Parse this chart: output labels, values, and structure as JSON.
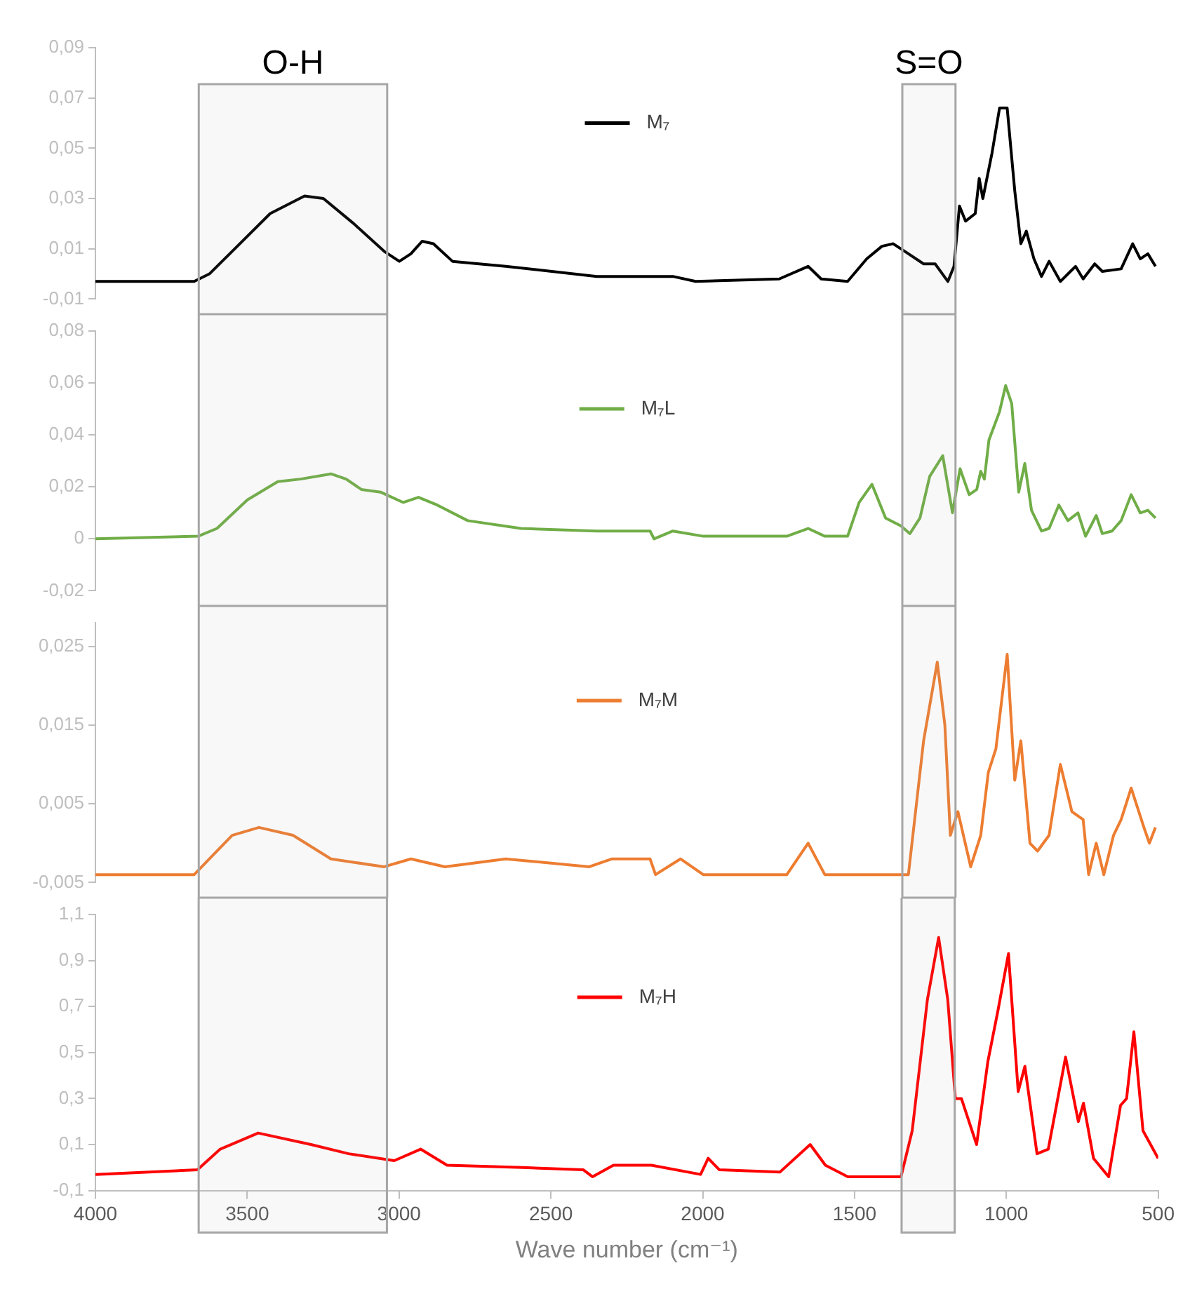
{
  "chart_data": [
    {
      "type": "line",
      "legend": "top",
      "tick_labels": "y",
      "xlim": [
        4000,
        500
      ],
      "ylim": [
        -0.01,
        0.09
      ],
      "yticks": [
        {
          "value": -0.01,
          "label": "-0,01"
        },
        {
          "value": 0.01,
          "label": "0,01"
        },
        {
          "value": 0.03,
          "label": "0,03"
        },
        {
          "value": 0.05,
          "label": "0,05"
        },
        {
          "value": 0.07,
          "label": "0,07"
        },
        {
          "value": 0.09,
          "label": "0,09"
        }
      ],
      "bands": [
        {
          "axis": "x",
          "from": 3660,
          "to": 3040,
          "label": "O-H",
          "color": "#a6a6a6"
        },
        {
          "axis": "x",
          "from": 1345,
          "to": 1170,
          "label": "S=O",
          "color": "#a6a6a6"
        }
      ],
      "series": [
        {
          "name": "M₇",
          "color": "#000000",
          "x": [
            4000,
            3675,
            3625,
            3525,
            3425,
            3312,
            3250,
            3150,
            3050,
            3000,
            2962,
            2925,
            2888,
            2825,
            2650,
            2350,
            2100,
            2025,
            1750,
            1655,
            1612,
            1525,
            1462,
            1412,
            1375,
            1337,
            1275,
            1237,
            1195,
            1175,
            1157,
            1137,
            1105,
            1092,
            1080,
            1050,
            1025,
            1000,
            975,
            955,
            937,
            912,
            887,
            862,
            825,
            775,
            750,
            712,
            687,
            625,
            587,
            562,
            537,
            512
          ],
          "values": [
            -0.003,
            -0.003,
            0.0,
            0.012,
            0.024,
            0.031,
            0.03,
            0.02,
            0.009,
            0.005,
            0.008,
            0.013,
            0.012,
            0.005,
            0.003,
            -0.001,
            -0.001,
            -0.003,
            -0.002,
            0.003,
            -0.002,
            -0.003,
            0.006,
            0.011,
            0.012,
            0.009,
            0.004,
            0.004,
            -0.003,
            0.003,
            0.027,
            0.021,
            0.024,
            0.038,
            0.03,
            0.048,
            0.066,
            0.066,
            0.033,
            0.012,
            0.017,
            0.006,
            -0.001,
            0.005,
            -0.003,
            0.003,
            -0.002,
            0.004,
            0.001,
            0.002,
            0.012,
            0.006,
            0.008,
            0.003
          ]
        }
      ]
    },
    {
      "type": "line",
      "legend": "top",
      "tick_labels": "y",
      "xlim": [
        4000,
        500
      ],
      "ylim": [
        -0.02,
        0.08
      ],
      "yticks": [
        {
          "value": -0.02,
          "label": "-0,02"
        },
        0,
        {
          "value": 0.02,
          "label": "0,02"
        },
        {
          "value": 0.04,
          "label": "0,04"
        },
        {
          "value": 0.06,
          "label": "0,06"
        },
        {
          "value": 0.08,
          "label": "0,08"
        }
      ],
      "bands": [
        {
          "axis": "x",
          "from": 3660,
          "to": 3040,
          "color": "#a6a6a6"
        },
        {
          "axis": "x",
          "from": 1345,
          "to": 1170,
          "color": "#a6a6a6"
        }
      ],
      "series": [
        {
          "name": "M₇L",
          "color": "#70ad47",
          "x": [
            4000,
            3662,
            3600,
            3500,
            3400,
            3325,
            3225,
            3175,
            3125,
            3062,
            2987,
            2937,
            2875,
            2775,
            2600,
            2350,
            2175,
            2162,
            2100,
            2000,
            1725,
            1655,
            1600,
            1525,
            1487,
            1445,
            1400,
            1350,
            1320,
            1287,
            1255,
            1212,
            1180,
            1155,
            1125,
            1100,
            1087,
            1075,
            1060,
            1025,
            1005,
            985,
            962,
            942,
            920,
            887,
            862,
            830,
            800,
            767,
            742,
            707,
            687,
            655,
            625,
            592,
            562,
            537,
            512
          ],
          "values": [
            0,
            0.001,
            0.004,
            0.015,
            0.022,
            0.023,
            0.025,
            0.023,
            0.019,
            0.018,
            0.014,
            0.016,
            0.013,
            0.007,
            0.004,
            0.003,
            0.003,
            0,
            0.003,
            0.001,
            0.001,
            0.004,
            0.001,
            0.001,
            0.014,
            0.021,
            0.008,
            0.005,
            0.002,
            0.008,
            0.024,
            0.032,
            0.01,
            0.027,
            0.017,
            0.019,
            0.026,
            0.023,
            0.038,
            0.049,
            0.059,
            0.052,
            0.018,
            0.029,
            0.011,
            0.003,
            0.004,
            0.013,
            0.007,
            0.01,
            0.001,
            0.009,
            0.002,
            0.003,
            0.007,
            0.017,
            0.01,
            0.011,
            0.008
          ]
        }
      ]
    },
    {
      "type": "line",
      "legend": "top",
      "tick_labels": "y",
      "xlim": [
        4000,
        500
      ],
      "ylim": [
        -0.005,
        0.028
      ],
      "yticks": [
        {
          "value": -0.005,
          "label": "-0,005"
        },
        {
          "value": 0.005,
          "label": "0,005"
        },
        {
          "value": 0.015,
          "label": "0,015"
        },
        {
          "value": 0.025,
          "label": "0,025"
        }
      ],
      "bands": [
        {
          "axis": "x",
          "from": 3660,
          "to": 3040,
          "color": "#a6a6a6"
        },
        {
          "axis": "x",
          "from": 1345,
          "to": 1170,
          "color": "#a6a6a6"
        }
      ],
      "series": [
        {
          "name": "M₇M",
          "color": "#ed7d31",
          "x": [
            4000,
            3675,
            3625,
            3550,
            3462,
            3350,
            3225,
            3050,
            2962,
            2850,
            2650,
            2375,
            2300,
            2175,
            2157,
            2075,
            2000,
            1725,
            1655,
            1600,
            1350,
            1325,
            1275,
            1230,
            1205,
            1187,
            1162,
            1120,
            1087,
            1062,
            1037,
            1000,
            975,
            955,
            925,
            900,
            862,
            825,
            787,
            750,
            732,
            707,
            682,
            650,
            625,
            592,
            550,
            532,
            512
          ],
          "values": [
            -0.004,
            -0.004,
            -0.002,
            0.001,
            0.002,
            0.001,
            -0.002,
            -0.003,
            -0.002,
            -0.003,
            -0.002,
            -0.003,
            -0.002,
            -0.002,
            -0.004,
            -0.002,
            -0.004,
            -0.004,
            0.0,
            -0.004,
            -0.004,
            -0.004,
            0.013,
            0.023,
            0.015,
            0.001,
            0.004,
            -0.003,
            0.001,
            0.009,
            0.012,
            0.024,
            0.008,
            0.013,
            0.0,
            -0.001,
            0.001,
            0.01,
            0.004,
            0.003,
            -0.004,
            0.0,
            -0.004,
            0.001,
            0.003,
            0.007,
            0.002,
            0.0,
            0.002
          ]
        }
      ]
    },
    {
      "type": "line",
      "legend": "top",
      "xlim": [
        4000,
        500
      ],
      "ylim": [
        -0.1,
        1.1
      ],
      "xlabel": "Wave number (cm⁻¹)",
      "xticks": [
        4000,
        3500,
        3000,
        2500,
        2000,
        1500,
        1000,
        500
      ],
      "yticks": [
        {
          "value": -0.1,
          "label": "-0,1"
        },
        {
          "value": 0.1,
          "label": "0,1"
        },
        {
          "value": 0.3,
          "label": "0,3"
        },
        {
          "value": 0.5,
          "label": "0,5"
        },
        {
          "value": 0.7,
          "label": "0,7"
        },
        {
          "value": 0.9,
          "label": "0,9"
        },
        {
          "value": 1.1,
          "label": "1,1"
        }
      ],
      "bands": [
        {
          "axis": "x",
          "from": 3660,
          "to": 3040,
          "color": "#a6a6a6"
        },
        {
          "axis": "x",
          "from": 1345,
          "to": 1170,
          "color": "#a6a6a6"
        }
      ],
      "series": [
        {
          "name": "M₇H",
          "color": "#ff0000",
          "x": [
            4000,
            3664,
            3589,
            3464,
            3290,
            3166,
            3016,
            2929,
            2842,
            2593,
            2393,
            2363,
            2294,
            2169,
            2007,
            1982,
            1945,
            1746,
            1646,
            1596,
            1522,
            1347,
            1310,
            1260,
            1223,
            1193,
            1168,
            1148,
            1098,
            1061,
            1028,
            993,
            961,
            939,
            899,
            862,
            805,
            763,
            746,
            713,
            663,
            624,
            604,
            580,
            550,
            500
          ],
          "values": [
            -0.03,
            -0.01,
            0.08,
            0.15,
            0.1,
            0.06,
            0.03,
            0.08,
            0.01,
            0.0,
            -0.01,
            -0.04,
            0.01,
            0.01,
            -0.03,
            0.04,
            -0.01,
            -0.02,
            0.1,
            0.01,
            -0.04,
            -0.04,
            0.16,
            0.73,
            1.0,
            0.73,
            0.3,
            0.3,
            0.1,
            0.46,
            0.68,
            0.93,
            0.33,
            0.44,
            0.06,
            0.08,
            0.48,
            0.2,
            0.28,
            0.04,
            -0.04,
            0.27,
            0.3,
            0.59,
            0.16,
            0.04
          ]
        }
      ]
    }
  ]
}
